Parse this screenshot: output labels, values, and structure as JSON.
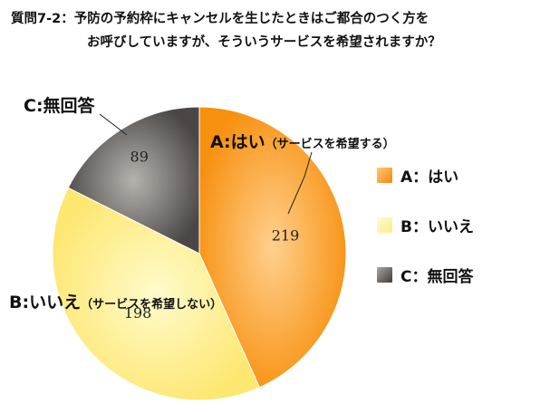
{
  "title": {
    "line1": "質問7-2：予防の予約枠にキャンセルを生じたときはご都合のつく方を",
    "line2": "お呼びしていますが、そういうサービスを希望されますか？"
  },
  "chart_data": {
    "type": "pie",
    "categories": [
      "A：はい",
      "B：いいえ",
      "C：無回答"
    ],
    "values": [
      219,
      198,
      89
    ],
    "slice_labels": [
      {
        "main": "A:はい",
        "note": "（サービスを希望する）"
      },
      {
        "main": "B:いいえ",
        "note": "（サービスを希望しない）"
      },
      {
        "main": "C:無回答",
        "note": ""
      }
    ],
    "legend_position": "right",
    "colors": [
      {
        "base": "#f7900e",
        "light": "#ffd08e"
      },
      {
        "base": "#fde771",
        "light": "#fffbcc"
      },
      {
        "base": "#4a4746",
        "light": "#b5b2ae"
      }
    ]
  }
}
